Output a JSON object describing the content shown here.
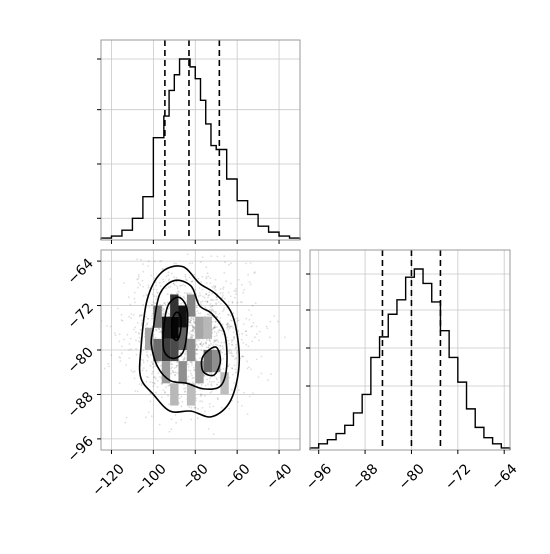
{
  "chart_data": [
    {
      "type": "histogram",
      "panel": "top-left",
      "xlim": [
        -125,
        -30
      ],
      "ylim": [
        0,
        1
      ],
      "grid": true,
      "x_ticks": [
        -120,
        -100,
        -80,
        -60,
        -40
      ],
      "x_tick_labels_shown": false,
      "bin_edges": [
        -125,
        -120,
        -115,
        -110,
        -105,
        -100,
        -97.5,
        -95,
        -92.5,
        -90,
        -87.5,
        -85,
        -82.5,
        -80,
        -77.5,
        -75,
        -72.5,
        -70,
        -65,
        -60,
        -55,
        -50,
        -45,
        -40,
        -35,
        -30
      ],
      "values": [
        0.01,
        0.02,
        0.05,
        0.11,
        0.22,
        0.52,
        0.52,
        0.63,
        0.76,
        0.84,
        0.92,
        0.92,
        0.88,
        0.82,
        0.71,
        0.59,
        0.48,
        0.46,
        0.31,
        0.2,
        0.13,
        0.07,
        0.04,
        0.02,
        0.01
      ],
      "quantiles": [
        -94.5,
        -83,
        -68.5
      ]
    },
    {
      "type": "heatmap",
      "panel": "bottom-left",
      "xlim": [
        -125,
        -30
      ],
      "ylim": [
        -98,
        -62
      ],
      "grid": true,
      "x_ticks": [
        -120,
        -100,
        -80,
        -60,
        -40
      ],
      "x_tick_labels": [
        "−120",
        "−100",
        "−80",
        "−60",
        "−40"
      ],
      "y_ticks": [
        -64,
        -72,
        -80,
        -88,
        -96
      ],
      "y_tick_labels": [
        "−64",
        "−72",
        "−80",
        "−88",
        "−96"
      ],
      "density_cells": [
        {
          "x": -90,
          "y": -76,
          "d": 1.0
        },
        {
          "x": -86,
          "y": -74,
          "d": 0.95
        },
        {
          "x": -94,
          "y": -76,
          "d": 0.9
        },
        {
          "x": -90,
          "y": -72,
          "d": 0.8
        },
        {
          "x": -94,
          "y": -80,
          "d": 0.75
        },
        {
          "x": -98,
          "y": -80,
          "d": 0.55
        },
        {
          "x": -90,
          "y": -80,
          "d": 0.7
        },
        {
          "x": -86,
          "y": -78,
          "d": 0.6
        },
        {
          "x": -98,
          "y": -74,
          "d": 0.5
        },
        {
          "x": -82,
          "y": -72,
          "d": 0.45
        },
        {
          "x": -74,
          "y": -82,
          "d": 0.55
        },
        {
          "x": -70,
          "y": -82,
          "d": 0.4
        },
        {
          "x": -78,
          "y": -84,
          "d": 0.35
        },
        {
          "x": -86,
          "y": -84,
          "d": 0.4
        },
        {
          "x": -94,
          "y": -84,
          "d": 0.35
        },
        {
          "x": -82,
          "y": -80,
          "d": 0.4
        },
        {
          "x": -78,
          "y": -76,
          "d": 0.3
        },
        {
          "x": -102,
          "y": -78,
          "d": 0.3
        },
        {
          "x": -82,
          "y": -88,
          "d": 0.2
        },
        {
          "x": -90,
          "y": -88,
          "d": 0.22
        },
        {
          "x": -66,
          "y": -86,
          "d": 0.2
        },
        {
          "x": -74,
          "y": -76,
          "d": 0.22
        }
      ],
      "contours": [
        [
          [
            -91,
            -74.5
          ],
          [
            -89,
            -73.2
          ],
          [
            -87,
            -74
          ],
          [
            -87,
            -76.5
          ],
          [
            -88.5,
            -78.2
          ],
          [
            -90.5,
            -77.8
          ],
          [
            -91.3,
            -76
          ]
        ],
        [
          [
            -95,
            -76
          ],
          [
            -93,
            -72
          ],
          [
            -88,
            -70.5
          ],
          [
            -84,
            -72.5
          ],
          [
            -84,
            -77
          ],
          [
            -86,
            -80.5
          ],
          [
            -91,
            -81.5
          ],
          [
            -95,
            -80
          ]
        ],
        [
          [
            -75,
            -80.5
          ],
          [
            -70,
            -79.5
          ],
          [
            -68,
            -82
          ],
          [
            -71,
            -84.5
          ],
          [
            -76,
            -84
          ],
          [
            -77,
            -82
          ]
        ],
        [
          [
            -100,
            -76
          ],
          [
            -97,
            -70
          ],
          [
            -90,
            -67.5
          ],
          [
            -82,
            -68.5
          ],
          [
            -78,
            -72
          ],
          [
            -72,
            -73.5
          ],
          [
            -66,
            -77
          ],
          [
            -65,
            -83
          ],
          [
            -68,
            -86.5
          ],
          [
            -76,
            -87
          ],
          [
            -84,
            -86
          ],
          [
            -92,
            -85.5
          ],
          [
            -98,
            -83
          ],
          [
            -101,
            -79
          ]
        ],
        [
          [
            -106,
            -80
          ],
          [
            -103,
            -71
          ],
          [
            -96,
            -66
          ],
          [
            -86,
            -65
          ],
          [
            -78,
            -68
          ],
          [
            -70,
            -70
          ],
          [
            -62,
            -74
          ],
          [
            -59,
            -82
          ],
          [
            -63,
            -89
          ],
          [
            -72,
            -92
          ],
          [
            -82,
            -91
          ],
          [
            -92,
            -91
          ],
          [
            -100,
            -88
          ],
          [
            -106,
            -85
          ]
        ]
      ]
    },
    {
      "type": "histogram",
      "panel": "bottom-right",
      "xlim": [
        -97.5,
        -63
      ],
      "ylim": [
        0,
        1
      ],
      "grid": true,
      "x_ticks": [
        -96,
        -88,
        -80,
        -72,
        -64
      ],
      "x_tick_labels": [
        "−96",
        "−88",
        "−80",
        "−72",
        "−64"
      ],
      "bin_edges": [
        -97.5,
        -96,
        -94.5,
        -93,
        -91.5,
        -90,
        -88.5,
        -87,
        -85.5,
        -84,
        -82.5,
        -81,
        -79.5,
        -78,
        -76.5,
        -75,
        -73.5,
        -72,
        -70.5,
        -69,
        -67.5,
        -66,
        -64.5,
        -63
      ],
      "values": [
        0.01,
        0.03,
        0.05,
        0.08,
        0.12,
        0.18,
        0.27,
        0.45,
        0.55,
        0.66,
        0.73,
        0.84,
        0.88,
        0.81,
        0.72,
        0.58,
        0.45,
        0.33,
        0.2,
        0.11,
        0.06,
        0.03,
        0.01
      ],
      "quantiles": [
        -85,
        -80,
        -75
      ]
    }
  ]
}
